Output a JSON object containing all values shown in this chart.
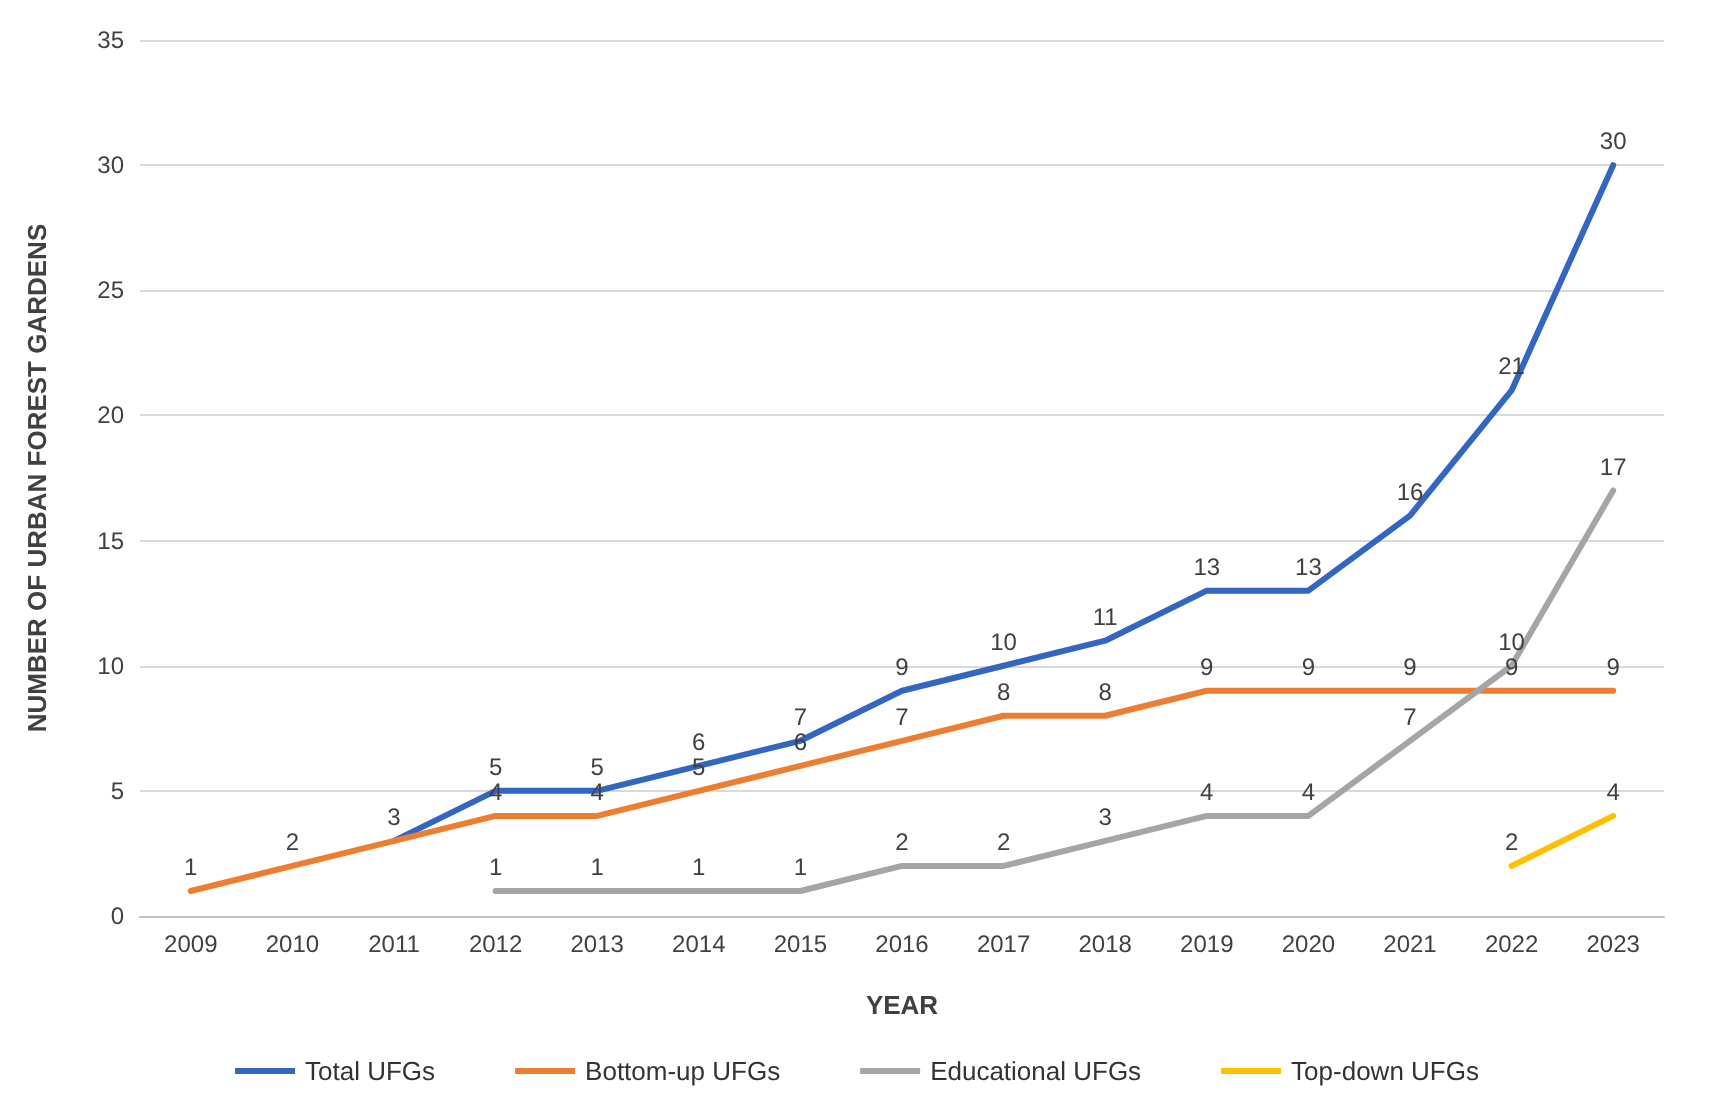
{
  "chart_data": {
    "type": "line",
    "xlabel": "YEAR",
    "ylabel": "NUMBER OF URBAN FOREST GARDENS",
    "categories": [
      "2009",
      "2010",
      "2011",
      "2012",
      "2013",
      "2014",
      "2015",
      "2016",
      "2017",
      "2018",
      "2019",
      "2020",
      "2021",
      "2022",
      "2023"
    ],
    "series": [
      {
        "name": "Total UFGs",
        "color": "#3366c0",
        "values": [
          null,
          null,
          3,
          5,
          5,
          6,
          7,
          9,
          10,
          11,
          13,
          13,
          16,
          21,
          30
        ],
        "value_labels": [
          null,
          null,
          null,
          "5",
          "5",
          "6",
          "7",
          "9",
          "10",
          "11",
          "13",
          "13",
          "16",
          "21",
          "30"
        ]
      },
      {
        "name": "Bottom-up UFGs",
        "color": "#ed7d31",
        "values": [
          1,
          2,
          3,
          4,
          4,
          5,
          6,
          7,
          8,
          8,
          9,
          9,
          9,
          9,
          9
        ],
        "value_labels": [
          "1",
          "2",
          "3",
          "4",
          "4",
          "5",
          "6",
          "7",
          "8",
          "8",
          "9",
          "9",
          "9",
          "9",
          "9"
        ]
      },
      {
        "name": "Educational UFGs",
        "color": "#a5a5a5",
        "values": [
          null,
          null,
          null,
          1,
          1,
          1,
          1,
          2,
          2,
          3,
          4,
          4,
          7,
          10,
          17
        ],
        "value_labels": [
          null,
          null,
          null,
          "1",
          "1",
          "1",
          "1",
          "2",
          "2",
          "3",
          "4",
          "4",
          "7",
          "10",
          "17"
        ]
      },
      {
        "name": "Top-down UFGs",
        "color": "#ffc000",
        "values": [
          null,
          null,
          null,
          null,
          null,
          null,
          null,
          null,
          null,
          null,
          null,
          null,
          null,
          2,
          4
        ],
        "value_labels": [
          null,
          null,
          null,
          null,
          null,
          null,
          null,
          null,
          null,
          null,
          null,
          null,
          null,
          "2",
          "4"
        ]
      }
    ],
    "ylim": [
      0,
      35
    ],
    "yticks": [
      0,
      5,
      10,
      15,
      20,
      25,
      30,
      35
    ],
    "grid": "y",
    "legend": "bottom",
    "marker": "none",
    "line_style": "solid"
  }
}
